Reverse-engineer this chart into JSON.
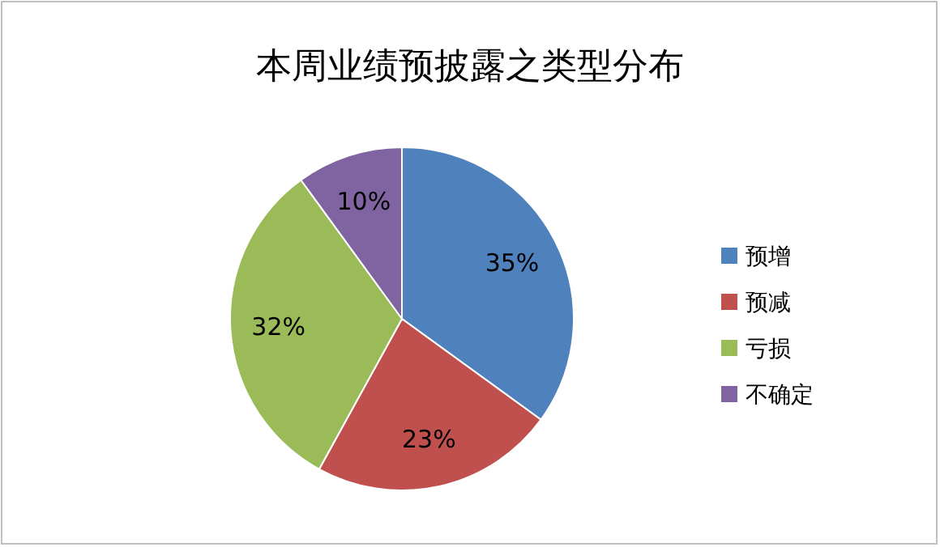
{
  "chart_data": {
    "type": "pie",
    "title": "本周业绩预披露之类型分布",
    "categories": [
      "预增",
      "预减",
      "亏损",
      "不确定"
    ],
    "values": [
      35,
      23,
      32,
      10
    ],
    "colors": [
      "#4f81bd",
      "#c0504d",
      "#9bbb59",
      "#8064a2"
    ],
    "value_labels": [
      "35%",
      "23%",
      "32%",
      "10%"
    ],
    "legend": "right"
  }
}
